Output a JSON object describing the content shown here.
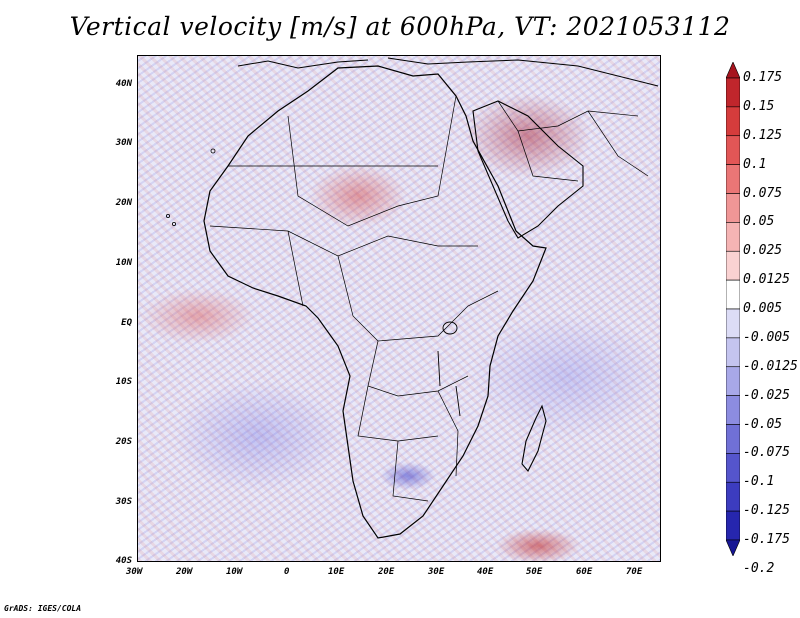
{
  "title": "Vertical velocity [m/s] at 600hPa, VT: 2021053112",
  "latitude_labels": [
    "40N",
    "30N",
    "20N",
    "10N",
    "EQ",
    "10S",
    "20S",
    "30S",
    "40S"
  ],
  "longitude_labels": [
    "30W",
    "20W",
    "10W",
    "0",
    "10E",
    "20E",
    "30E",
    "40E",
    "50E",
    "60E",
    "70E"
  ],
  "colorbar": {
    "levels": [
      "0.175",
      "0.15",
      "0.125",
      "0.1",
      "0.075",
      "0.05",
      "0.025",
      "0.0125",
      "0.005",
      "-0.005",
      "-0.0125",
      "-0.025",
      "-0.05",
      "-0.075",
      "-0.1",
      "-0.125",
      "-0.175",
      "-0.2"
    ],
    "colors": [
      "#a6141e",
      "#c0262c",
      "#d53c3c",
      "#e25656",
      "#ea7676",
      "#f09696",
      "#f5b4b4",
      "#fad2d2",
      "#ffffff",
      "#dcdcf6",
      "#c4c4ef",
      "#a8a8e8",
      "#8c8ce0",
      "#7070d6",
      "#5555cc",
      "#3c3cbf",
      "#2626ae",
      "#161694"
    ]
  },
  "footer": "GrADS: IGES/COLA"
}
